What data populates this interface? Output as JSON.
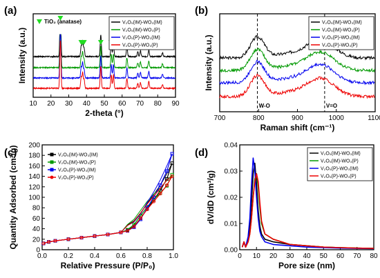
{
  "chart_data": [
    {
      "panel_label": "(a)",
      "type": "line",
      "title": "",
      "xlabel": "2-theta (°)",
      "ylabel": "Intensity (a.u.)",
      "xlim": [
        10,
        90
      ],
      "xticks": [
        10,
        20,
        30,
        40,
        50,
        60,
        70,
        80,
        90
      ],
      "show_y_ticks": false,
      "marker_legend": "TiO₂ (anatase)",
      "marker_color": "#22dd22",
      "marker_x": [
        25.3,
        37.0,
        37.8,
        38.6,
        48.0,
        53.9,
        55.1,
        62.7,
        68.8,
        70.3,
        75.0,
        82.7
      ],
      "peaks": [
        {
          "x": 25.3,
          "h": 1.0
        },
        {
          "x": 37.0,
          "h": 0.22
        },
        {
          "x": 37.8,
          "h": 0.32
        },
        {
          "x": 38.6,
          "h": 0.18
        },
        {
          "x": 48.0,
          "h": 0.45
        },
        {
          "x": 53.9,
          "h": 0.28
        },
        {
          "x": 55.1,
          "h": 0.28
        },
        {
          "x": 62.7,
          "h": 0.2
        },
        {
          "x": 68.8,
          "h": 0.1
        },
        {
          "x": 70.3,
          "h": 0.12
        },
        {
          "x": 75.0,
          "h": 0.14
        },
        {
          "x": 82.7,
          "h": 0.08
        }
      ],
      "series": [
        {
          "name": "V₂O₅(IM)-WO₃(IM)",
          "color": "#000000",
          "offset": 3,
          "scale": 1.0
        },
        {
          "name": "V₂O₅(IM)-WO₃(P)",
          "color": "#009900",
          "offset": 2,
          "scale": 1.0
        },
        {
          "name": "V₂O₅(P)-WO₃(IM)",
          "color": "#0000ee",
          "offset": 1,
          "scale": 1.0
        },
        {
          "name": "V₂O₅(P)-WO₃(P)",
          "color": "#ee0000",
          "offset": 0,
          "scale": 1.0
        }
      ]
    },
    {
      "panel_label": "(b)",
      "type": "line",
      "title": "",
      "xlabel": "Raman shift (cm⁻¹)",
      "ylabel": "Intensity (a.u.)",
      "xlim": [
        700,
        1100
      ],
      "xticks": [
        700,
        800,
        900,
        1000,
        1100
      ],
      "show_y_ticks": false,
      "reference_lines": [
        {
          "x": 797,
          "label": "W-O"
        },
        {
          "x": 970,
          "label": "V=O"
        }
      ],
      "series": [
        {
          "name": "V₂O₅(IM)-WO₃(IM)",
          "color": "#000000",
          "offset": 3
        },
        {
          "name": "V₂O₅(IM)-WO₃(P)",
          "color": "#009900",
          "offset": 2
        },
        {
          "name": "V₂O₅(P)-WO₃(IM)",
          "color": "#0000ee",
          "offset": 1
        },
        {
          "name": "V₂O₅(P)-WO₃(P)",
          "color": "#ee0000",
          "offset": 0
        }
      ]
    },
    {
      "panel_label": "(c)",
      "type": "line",
      "title": "",
      "xlabel": "Relative Pressure (P/P₀)",
      "ylabel": "Quantity Adsorbed (cm³/g)",
      "xlim": [
        0.0,
        1.0
      ],
      "ylim": [
        0,
        200
      ],
      "xticks": [
        0.0,
        0.2,
        0.4,
        0.6,
        0.8,
        1.0
      ],
      "yticks": [
        0,
        20,
        40,
        60,
        80,
        100,
        120,
        140,
        160,
        180,
        200
      ],
      "series": [
        {
          "name": "V₂O₅(IM)-WO₃(IM)",
          "color": "#000000",
          "marker": "square",
          "x": [
            0.01,
            0.05,
            0.1,
            0.2,
            0.3,
            0.4,
            0.5,
            0.6,
            0.65,
            0.7,
            0.75,
            0.8,
            0.85,
            0.9,
            0.95,
            0.99
          ],
          "y": [
            12,
            15,
            17,
            20,
            23,
            26,
            29,
            33,
            37,
            45,
            60,
            78,
            95,
            113,
            135,
            165
          ]
        },
        {
          "name": "V₂O₅(IM)-WO₃(P)",
          "color": "#009900",
          "marker": "square",
          "x": [
            0.01,
            0.05,
            0.1,
            0.2,
            0.3,
            0.4,
            0.5,
            0.6,
            0.65,
            0.7,
            0.75,
            0.8,
            0.85,
            0.9,
            0.95,
            0.99
          ],
          "y": [
            12,
            15,
            17,
            20,
            23,
            26,
            29,
            33,
            38,
            48,
            65,
            82,
            96,
            108,
            122,
            143
          ]
        },
        {
          "name": "V₂O₅(P)-WO₃(IM)",
          "color": "#0000ee",
          "marker": "square",
          "x": [
            0.01,
            0.05,
            0.1,
            0.2,
            0.3,
            0.4,
            0.5,
            0.6,
            0.65,
            0.7,
            0.75,
            0.8,
            0.85,
            0.9,
            0.95,
            0.99
          ],
          "y": [
            12,
            15,
            17,
            20,
            23,
            26,
            29,
            33,
            36,
            43,
            58,
            80,
            100,
            123,
            150,
            183
          ]
        },
        {
          "name": "V₂O₅(P)-WO₃(P)",
          "color": "#ee0000",
          "marker": "circle",
          "x": [
            0.01,
            0.05,
            0.1,
            0.2,
            0.3,
            0.4,
            0.5,
            0.6,
            0.65,
            0.7,
            0.75,
            0.8,
            0.85,
            0.9,
            0.95,
            0.99
          ],
          "y": [
            12,
            15,
            17,
            20,
            23,
            26,
            29,
            33,
            36,
            44,
            60,
            77,
            92,
            107,
            123,
            140
          ]
        }
      ]
    },
    {
      "panel_label": "(d)",
      "type": "line",
      "title": "",
      "xlabel": "Pore size (nm)",
      "ylabel": "dV/dD (cm³/g)",
      "xlim": [
        0,
        80
      ],
      "ylim": [
        0,
        0.04
      ],
      "xticks": [
        0,
        10,
        20,
        30,
        40,
        50,
        60,
        70,
        80
      ],
      "yticks": [
        0.0,
        0.01,
        0.02,
        0.03,
        0.04
      ],
      "series": [
        {
          "name": "V₂O₅(IM)-WO₃(IM)",
          "color": "#000000",
          "x": [
            1.5,
            2.5,
            3.5,
            5,
            6,
            7,
            8,
            9,
            10,
            11,
            12,
            13,
            15,
            20,
            30,
            40,
            50,
            60,
            70,
            80
          ],
          "y": [
            0.001,
            0.003,
            0.001,
            0.004,
            0.009,
            0.018,
            0.029,
            0.033,
            0.025,
            0.015,
            0.009,
            0.006,
            0.004,
            0.003,
            0.002,
            0.0015,
            0.001,
            0.0008,
            0.0006,
            0.0005
          ]
        },
        {
          "name": "V₂O₅(IM)-WO₃(P)",
          "color": "#009900",
          "x": [
            1.5,
            2.5,
            3.5,
            5,
            6,
            7,
            8,
            9,
            10,
            11,
            12,
            13,
            15,
            20,
            30,
            40,
            50,
            60,
            70,
            80
          ],
          "y": [
            0.001,
            0.003,
            0.001,
            0.003,
            0.006,
            0.012,
            0.02,
            0.027,
            0.029,
            0.024,
            0.016,
            0.01,
            0.006,
            0.004,
            0.002,
            0.0015,
            0.001,
            0.0008,
            0.0006,
            0.0005
          ]
        },
        {
          "name": "V₂O₅(P)-WO₃(IM)",
          "color": "#0000ee",
          "x": [
            1.5,
            2.5,
            3.5,
            5,
            6,
            7,
            8,
            9,
            10,
            11,
            12,
            13,
            15,
            20,
            30,
            40,
            50,
            60,
            70,
            80
          ],
          "y": [
            0.001,
            0.003,
            0.001,
            0.005,
            0.012,
            0.025,
            0.035,
            0.03,
            0.02,
            0.012,
            0.007,
            0.005,
            0.003,
            0.002,
            0.0015,
            0.001,
            0.0008,
            0.0006,
            0.0005,
            0.0004
          ]
        },
        {
          "name": "V₂O₅(P)-WO₃(P)",
          "color": "#ee0000",
          "x": [
            1.5,
            2.5,
            3.5,
            5,
            6,
            7,
            8,
            9,
            10,
            11,
            12,
            13,
            15,
            20,
            30,
            40,
            50,
            60,
            70,
            80
          ],
          "y": [
            0.001,
            0.003,
            0.001,
            0.003,
            0.006,
            0.012,
            0.02,
            0.026,
            0.029,
            0.026,
            0.018,
            0.011,
            0.006,
            0.004,
            0.002,
            0.0015,
            0.001,
            0.0008,
            0.0006,
            0.0005
          ]
        }
      ]
    }
  ]
}
